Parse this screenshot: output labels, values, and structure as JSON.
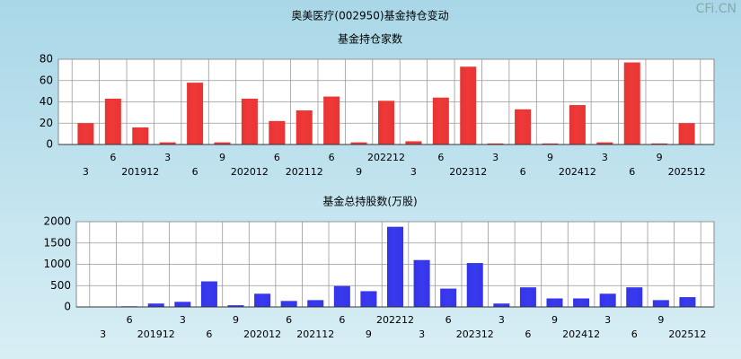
{
  "header": {
    "title": "奥美医疗(002950)基金持仓变动",
    "watermark": "CFi.CN"
  },
  "chart_data": [
    {
      "type": "bar",
      "title": "基金持仓家数",
      "color": "#e02828",
      "grid": true,
      "categories": [
        "3",
        "6",
        "201912",
        "3",
        "6",
        "9",
        "202012",
        "6",
        "202112",
        "6",
        "9",
        "202212",
        "3",
        "6",
        "202312",
        "3",
        "6",
        "9",
        "202412",
        "3",
        "6",
        "9",
        "202512"
      ],
      "values": [
        20,
        43,
        16,
        2,
        58,
        2,
        43,
        22,
        32,
        45,
        2,
        41,
        3,
        44,
        73,
        1,
        33,
        1,
        37,
        2,
        77,
        1,
        20
      ],
      "ylim": [
        0,
        80
      ],
      "yticks": [
        0,
        20,
        40,
        60,
        80
      ]
    },
    {
      "type": "bar",
      "title": "基金总持股数(万股)",
      "color": "#2828e0",
      "grid": true,
      "categories": [
        "3",
        "6",
        "201912",
        "3",
        "6",
        "9",
        "202012",
        "6",
        "202112",
        "6",
        "9",
        "202212",
        "3",
        "6",
        "202312",
        "3",
        "6",
        "9",
        "202412",
        "3",
        "6",
        "9",
        "202512"
      ],
      "values": [
        10,
        15,
        80,
        120,
        600,
        40,
        310,
        140,
        160,
        490,
        370,
        1880,
        1100,
        430,
        1030,
        80,
        460,
        200,
        200,
        310,
        460,
        160,
        230
      ],
      "ylim": [
        0,
        2000
      ],
      "yticks": [
        0,
        500,
        1000,
        1500,
        2000
      ]
    }
  ]
}
